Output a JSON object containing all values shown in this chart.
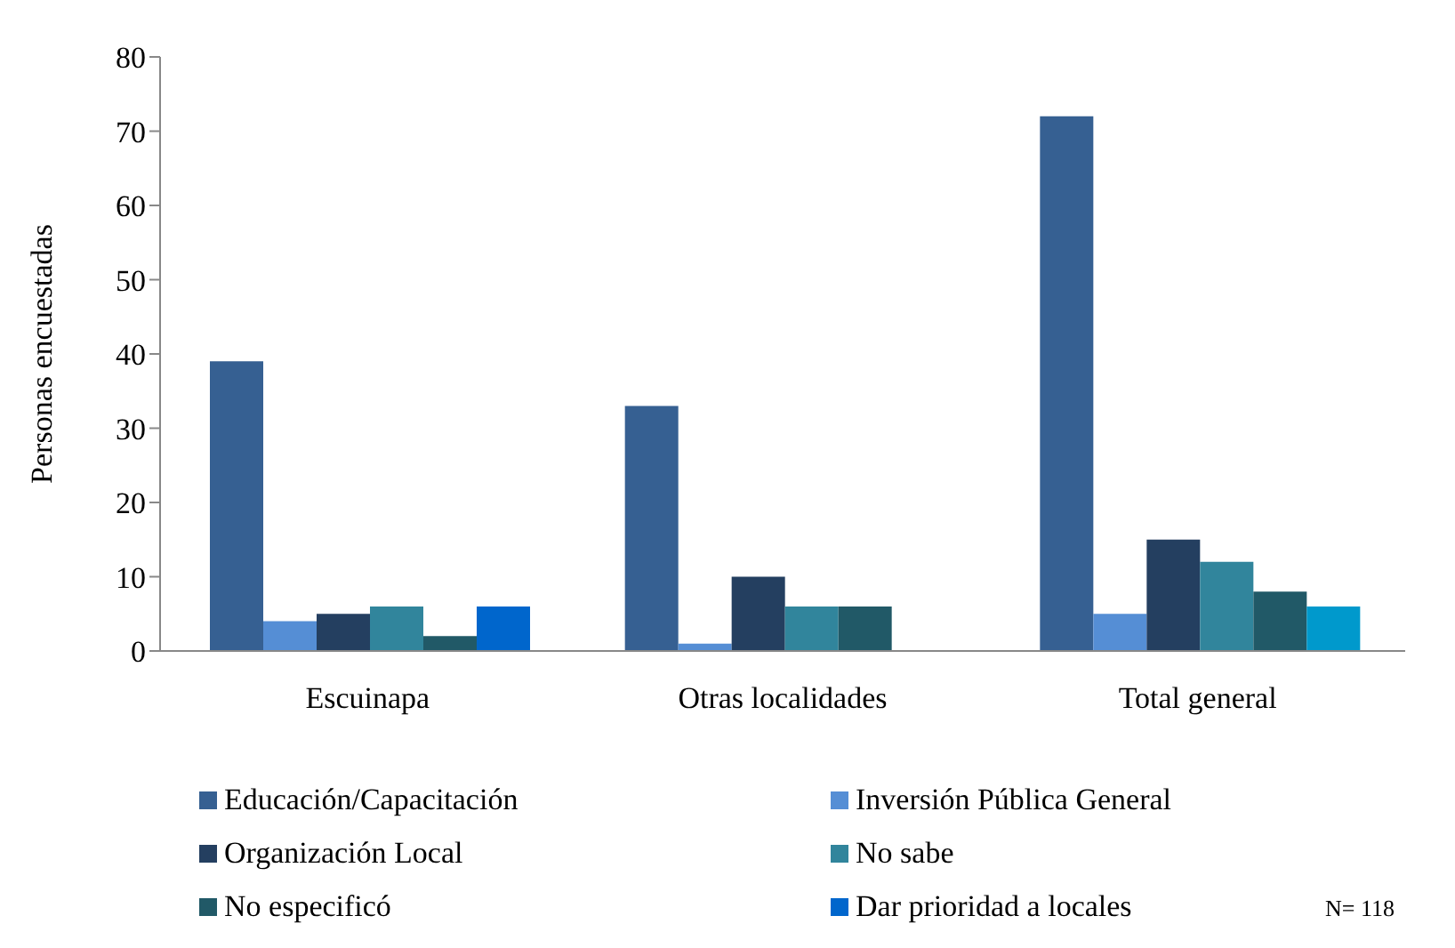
{
  "chart_data": {
    "type": "bar",
    "ylabel": "Personas encuestadas",
    "categories": [
      "Escuinapa",
      "Otras localidades",
      "Total general"
    ],
    "series": [
      {
        "name": "Educación/Capacitación",
        "color": "#366092",
        "values": [
          39,
          33,
          72
        ]
      },
      {
        "name": "Inversión Pública General",
        "color": "#558ed5",
        "values": [
          4,
          1,
          5
        ]
      },
      {
        "name": "Organización Local",
        "color": "#243f60",
        "values": [
          5,
          10,
          15
        ]
      },
      {
        "name": "No sabe",
        "color": "#31859c",
        "values": [
          6,
          6,
          12
        ]
      },
      {
        "name": "No especificó",
        "color": "#215967",
        "values": [
          2,
          6,
          8
        ]
      },
      {
        "name": "Dar prioridad a locales",
        "color": "#0066cc",
        "colors": [
          "#0066cc",
          "#0066cc",
          "#0099cc"
        ],
        "values": [
          6,
          0,
          6
        ]
      }
    ],
    "ylim": [
      0,
      80
    ],
    "yticks": [
      0,
      10,
      20,
      30,
      40,
      50,
      60,
      70,
      80
    ],
    "grid": false,
    "legend": "bottom",
    "annotations": [
      "N= 118"
    ]
  }
}
